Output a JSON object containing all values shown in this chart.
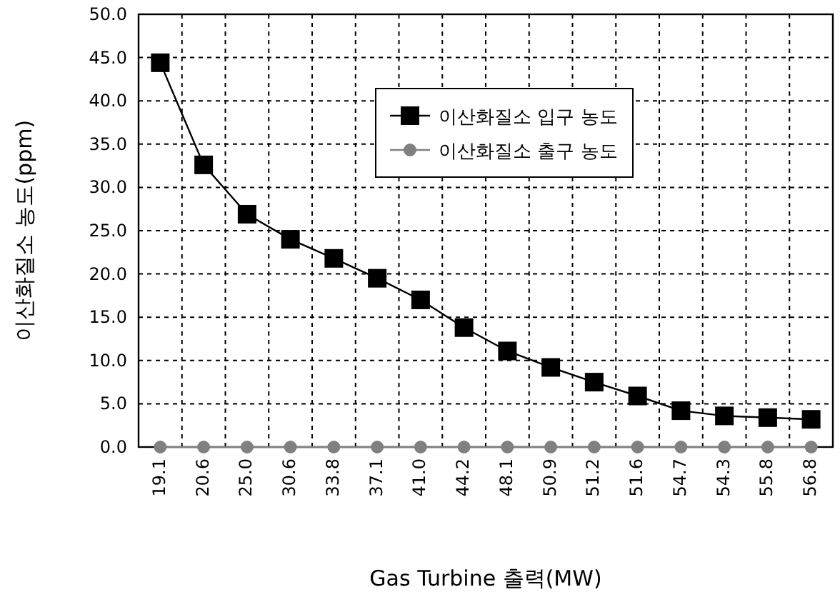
{
  "chart_data": {
    "type": "line",
    "xlabel": "Gas Turbine 출력(MW)",
    "ylabel": "이산화질소 농도(ppm)",
    "categories": [
      "19.1",
      "20.6",
      "25.0",
      "30.6",
      "33.8",
      "37.1",
      "41.0",
      "44.2",
      "48.1",
      "50.9",
      "51.2",
      "51.6",
      "54.7",
      "54.3",
      "55.8",
      "56.8"
    ],
    "series": [
      {
        "name": "이산화질소 입구 농도",
        "color": "#000000",
        "marker": "square",
        "values": [
          44.4,
          32.6,
          26.9,
          24.0,
          21.8,
          19.5,
          17.0,
          13.8,
          11.1,
          9.2,
          7.5,
          5.9,
          4.2,
          3.6,
          3.4,
          3.2
        ]
      },
      {
        "name": "이산화질소 출구 농도",
        "color": "#808080",
        "marker": "circle",
        "values": [
          0,
          0,
          0,
          0,
          0,
          0,
          0,
          0,
          0,
          0,
          0,
          0,
          0,
          0,
          0,
          0
        ]
      }
    ],
    "ylim": [
      0,
      50
    ],
    "yticks": [
      {
        "value": 0,
        "label": "0.0"
      },
      {
        "value": 5,
        "label": "5.0"
      },
      {
        "value": 10,
        "label": "10.0"
      },
      {
        "value": 15,
        "label": "15.0"
      },
      {
        "value": 20,
        "label": "20.0"
      },
      {
        "value": 25,
        "label": "25.0"
      },
      {
        "value": 30,
        "label": "30.0"
      },
      {
        "value": 35,
        "label": "35.0"
      },
      {
        "value": 40,
        "label": "40.0"
      },
      {
        "value": 45,
        "label": "45.0"
      },
      {
        "value": 50,
        "label": "50.0"
      }
    ],
    "grid": true,
    "legend": "top right",
    "line_style": "solid"
  }
}
